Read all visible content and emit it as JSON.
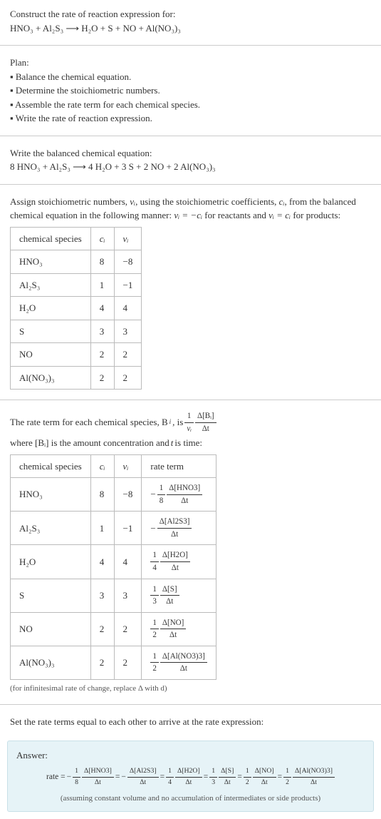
{
  "header": {
    "title": "Construct the rate of reaction expression for:",
    "equation_lhs": "HNO₃ + Al₂S₃",
    "arrow": "⟶",
    "equation_rhs": "H₂O + S + NO + Al(NO₃)₃"
  },
  "plan": {
    "title": "Plan:",
    "items": [
      "Balance the chemical equation.",
      "Determine the stoichiometric numbers.",
      "Assemble the rate term for each chemical species.",
      "Write the rate of reaction expression."
    ]
  },
  "balanced": {
    "title": "Write the balanced chemical equation:",
    "equation": "8 HNO₃ + Al₂S₃  ⟶  4 H₂O + 3 S + 2 NO + 2 Al(NO₃)₃"
  },
  "stoich": {
    "intro_a": "Assign stoichiometric numbers, ",
    "nu_i": "νᵢ",
    "intro_b": ", using the stoichiometric coefficients, ",
    "c_i": "cᵢ",
    "intro_c": ", from the balanced chemical equation in the following manner: ",
    "rule1": "νᵢ = −cᵢ",
    "intro_d": " for reactants and ",
    "rule2": "νᵢ = cᵢ",
    "intro_e": " for products:",
    "headers": [
      "chemical species",
      "cᵢ",
      "νᵢ"
    ],
    "rows": [
      [
        "HNO₃",
        "8",
        "−8"
      ],
      [
        "Al₂S₃",
        "1",
        "−1"
      ],
      [
        "H₂O",
        "4",
        "4"
      ],
      [
        "S",
        "3",
        "3"
      ],
      [
        "NO",
        "2",
        "2"
      ],
      [
        "Al(NO₃)₃",
        "2",
        "2"
      ]
    ],
    "table_style": {
      "border_color": "#bbbbbb",
      "cell_padding": "6px 12px",
      "font_size": 13
    }
  },
  "rateterm": {
    "intro_a": "The rate term for each chemical species, B",
    "intro_b": ", is ",
    "frac1_num": "1",
    "frac1_den": "νᵢ",
    "frac2_num": "Δ[Bᵢ]",
    "frac2_den": "Δt",
    "intro_c": " where [Bᵢ] is the amount concentration and ",
    "t": "t",
    "intro_d": " is time:",
    "headers": [
      "chemical species",
      "cᵢ",
      "νᵢ",
      "rate term"
    ],
    "rows": [
      {
        "sp": "HNO₃",
        "c": "8",
        "nu": "−8",
        "neg": "−",
        "cnum": "1",
        "cden": "8",
        "dnum": "Δ[HNO3]",
        "dden": "Δt"
      },
      {
        "sp": "Al₂S₃",
        "c": "1",
        "nu": "−1",
        "neg": "−",
        "cnum": "",
        "cden": "",
        "dnum": "Δ[Al2S3]",
        "dden": "Δt"
      },
      {
        "sp": "H₂O",
        "c": "4",
        "nu": "4",
        "neg": "",
        "cnum": "1",
        "cden": "4",
        "dnum": "Δ[H2O]",
        "dden": "Δt"
      },
      {
        "sp": "S",
        "c": "3",
        "nu": "3",
        "neg": "",
        "cnum": "1",
        "cden": "3",
        "dnum": "Δ[S]",
        "dden": "Δt"
      },
      {
        "sp": "NO",
        "c": "2",
        "nu": "2",
        "neg": "",
        "cnum": "1",
        "cden": "2",
        "dnum": "Δ[NO]",
        "dden": "Δt"
      },
      {
        "sp": "Al(NO₃)₃",
        "c": "2",
        "nu": "2",
        "neg": "",
        "cnum": "1",
        "cden": "2",
        "dnum": "Δ[Al(NO3)3]",
        "dden": "Δt"
      }
    ],
    "note": "(for infinitesimal rate of change, replace Δ with d)"
  },
  "final": {
    "title": "Set the rate terms equal to each other to arrive at the rate expression:",
    "answer_label": "Answer:",
    "rate_label": "rate = ",
    "terms": [
      {
        "neg": "−",
        "cnum": "1",
        "cden": "8",
        "dnum": "Δ[HNO3]",
        "dden": "Δt"
      },
      {
        "neg": "−",
        "cnum": "",
        "cden": "",
        "dnum": "Δ[Al2S3]",
        "dden": "Δt"
      },
      {
        "neg": "",
        "cnum": "1",
        "cden": "4",
        "dnum": "Δ[H2O]",
        "dden": "Δt"
      },
      {
        "neg": "",
        "cnum": "1",
        "cden": "3",
        "dnum": "Δ[S]",
        "dden": "Δt"
      },
      {
        "neg": "",
        "cnum": "1",
        "cden": "2",
        "dnum": "Δ[NO]",
        "dden": "Δt"
      },
      {
        "neg": "",
        "cnum": "1",
        "cden": "2",
        "dnum": "Δ[Al(NO3)3]",
        "dden": "Δt"
      }
    ],
    "eq": " = ",
    "note": "(assuming constant volume and no accumulation of intermediates or side products)"
  },
  "colors": {
    "text": "#333333",
    "hr": "#cccccc",
    "border": "#bbbbbb",
    "answer_bg": "#e6f3f7",
    "answer_border": "#c8e0e8",
    "note": "#555555"
  }
}
